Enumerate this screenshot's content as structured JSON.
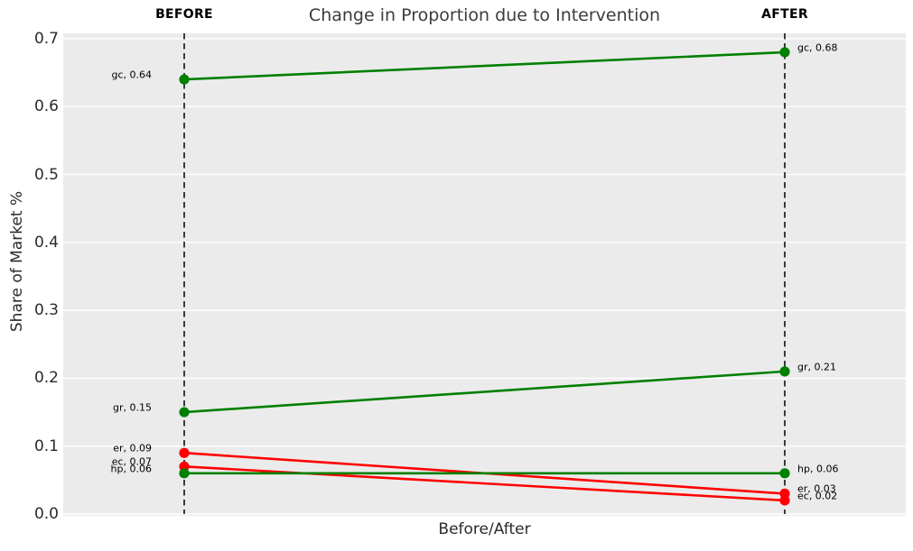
{
  "title": "Change in Proportion due to Intervention",
  "columns": {
    "before": "BEFORE",
    "after": "AFTER"
  },
  "colors": {
    "increase": "#008000",
    "decrease": "#ff0000",
    "plot_background": "#ebebeb",
    "gridline": "#ffffff",
    "guide_line": "#000000",
    "figure_background": "#ffffff",
    "title_text": "#3c3c3c",
    "axis_text": "#2b2b2b",
    "annotation_text": "#000000"
  },
  "chart_data": {
    "type": "line",
    "subtype": "slope-chart",
    "title": "Change in Proportion due to Intervention",
    "xlabel": "Before/After",
    "ylabel": "Share of Market %",
    "x_categories": [
      "BEFORE",
      "AFTER"
    ],
    "ylim": [
      0.0,
      0.7
    ],
    "yticks": [
      0.0,
      0.1,
      0.2,
      0.3,
      0.4,
      0.5,
      0.6,
      0.7
    ],
    "ytick_labels": [
      "0.0",
      "0.1",
      "0.2",
      "0.3",
      "0.4",
      "0.5",
      "0.6",
      "0.7"
    ],
    "grid": "horizontal",
    "legend": "none",
    "series": [
      {
        "name": "gc",
        "before": 0.64,
        "after": 0.68,
        "trend": "increase",
        "color": "#008000",
        "label_before": "gc, 0.64",
        "label_after": "gc, 0.68"
      },
      {
        "name": "gr",
        "before": 0.15,
        "after": 0.21,
        "trend": "increase",
        "color": "#008000",
        "label_before": "gr, 0.15",
        "label_after": "gr, 0.21"
      },
      {
        "name": "er",
        "before": 0.09,
        "after": 0.03,
        "trend": "decrease",
        "color": "#ff0000",
        "label_before": "er, 0.09",
        "label_after": "er, 0.03"
      },
      {
        "name": "ec",
        "before": 0.07,
        "after": 0.02,
        "trend": "decrease",
        "color": "#ff0000",
        "label_before": "ec, 0.07",
        "label_after": "ec, 0.02"
      },
      {
        "name": "hp",
        "before": 0.06,
        "after": 0.06,
        "trend": "increase",
        "color": "#008000",
        "label_before": "hp, 0.06",
        "label_after": "hp, 0.06"
      }
    ]
  }
}
